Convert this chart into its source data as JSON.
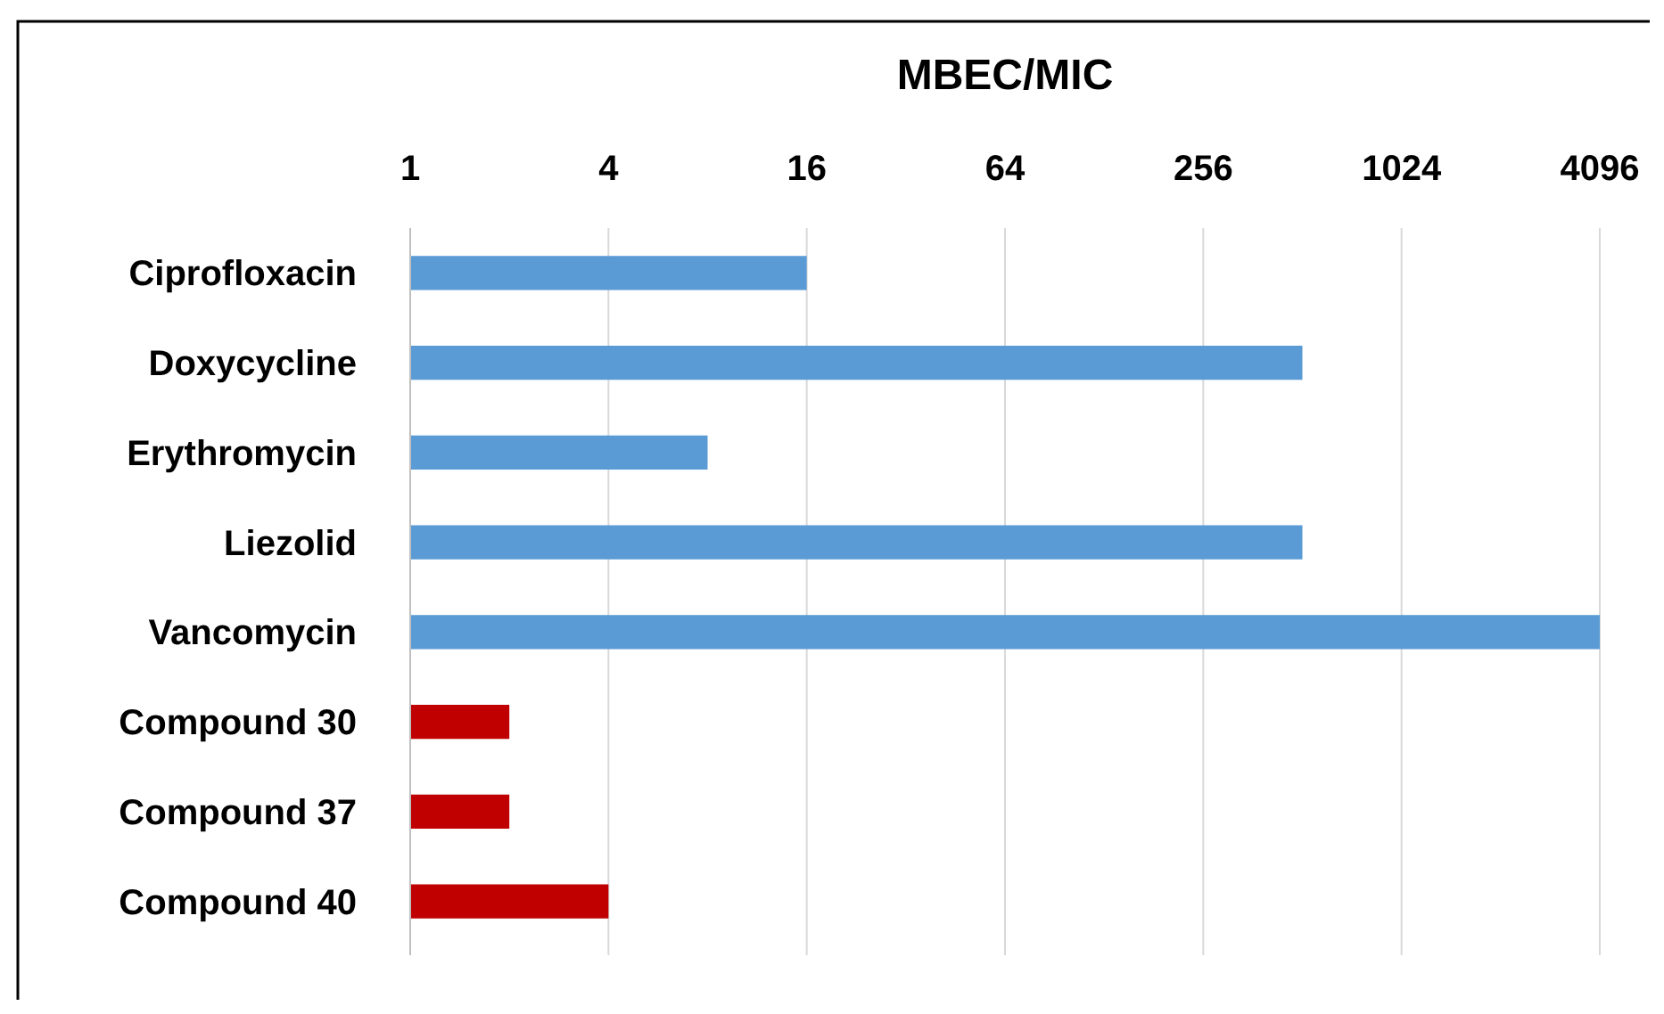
{
  "chart_data": {
    "type": "bar",
    "orientation": "horizontal",
    "title": "MBEC/MIC",
    "categories": [
      "Ciprofloxacin",
      "Doxycycline",
      "Erythromycin",
      "Liezolid",
      "Vancomycin",
      "Compound 30",
      "Compound 37",
      "Compound 40"
    ],
    "values": [
      16,
      512,
      8,
      512,
      4096,
      2,
      2,
      4
    ],
    "colors": [
      "#5b9bd5",
      "#5b9bd5",
      "#5b9bd5",
      "#5b9bd5",
      "#5b9bd5",
      "#c00000",
      "#c00000",
      "#c00000"
    ],
    "log": "x",
    "xlim": [
      1,
      4096
    ],
    "xticks": [
      1,
      4,
      16,
      64,
      256,
      1024,
      4096
    ],
    "grid": "x"
  }
}
